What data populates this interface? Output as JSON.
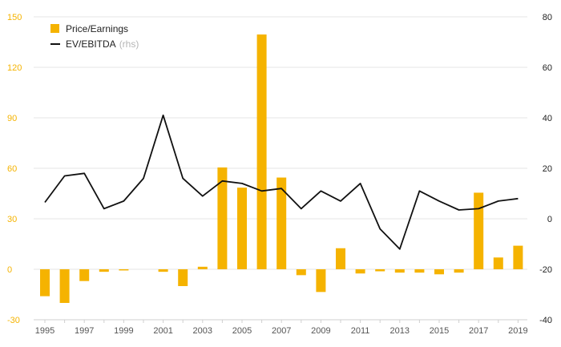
{
  "chart_data": {
    "type": "bar",
    "x": [
      1995,
      1996,
      1997,
      1998,
      1999,
      2000,
      2001,
      2002,
      2003,
      2004,
      2005,
      2006,
      2007,
      2008,
      2009,
      2010,
      2011,
      2012,
      2013,
      2014,
      2015,
      2016,
      2017,
      2018,
      2019
    ],
    "x_tick_labels": [
      "1995",
      "1997",
      "1999",
      "2001",
      "2003",
      "2005",
      "2007",
      "2009",
      "2011",
      "2013",
      "2015",
      "2017",
      "2019"
    ],
    "series": [
      {
        "name": "Price/Earnings",
        "type": "bar",
        "axis": "left",
        "color": "#f5b300",
        "values": [
          -16,
          -20,
          -7,
          -1.5,
          -0.7,
          0,
          -1.5,
          -10,
          1.5,
          60.5,
          48.5,
          139.5,
          54.5,
          -3.5,
          -13.5,
          12.5,
          -2.5,
          -1.2,
          -2,
          -2,
          -3,
          -2,
          45.5,
          7,
          14
        ]
      },
      {
        "name": "EV/EBITDA",
        "name_note": "(rhs)",
        "type": "line",
        "axis": "right",
        "color": "#111111",
        "values": [
          6.5,
          17,
          18,
          4,
          7,
          16,
          41,
          16,
          9,
          15,
          14,
          11,
          12,
          4,
          11,
          7,
          14,
          -4,
          -12,
          11,
          7,
          3.5,
          4,
          7,
          8
        ]
      }
    ],
    "left_axis": {
      "ticks": [
        "150",
        "120",
        "90",
        "60",
        "30",
        "0",
        "-30"
      ],
      "ylim": [
        -30,
        150
      ],
      "color": "#f5b300"
    },
    "right_axis": {
      "ticks": [
        "80",
        "60",
        "40",
        "20",
        "0",
        "-20",
        "-40"
      ],
      "ylim": [
        -40,
        80
      ],
      "color": "#222222"
    },
    "grid": true,
    "legend_position": "top-left"
  }
}
